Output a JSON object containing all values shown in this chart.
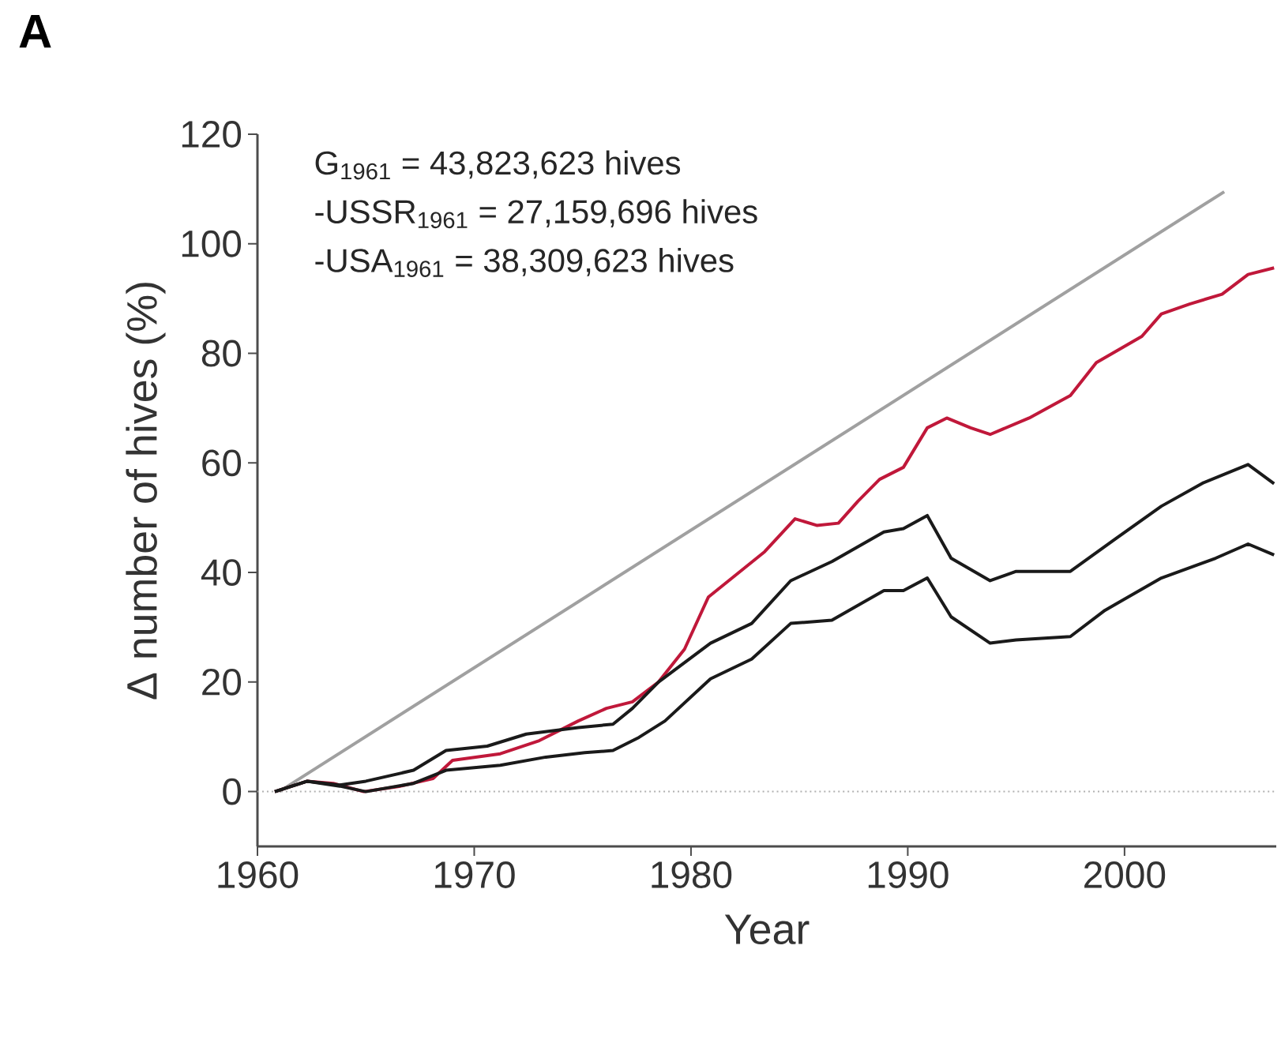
{
  "chart_data": {
    "type": "line",
    "title": "A",
    "xlabel": "Year",
    "ylabel": "Δ number of hives (%)",
    "annotations": [
      "G$_{1961}$ = 43,823,623 hives",
      "-USSR$_{1961}$ = 27,159,696 hives",
      "-USA$_{1961}$ = 38,309,623 hives"
    ],
    "xlim": [
      1960,
      2007
    ],
    "ylim": [
      -10,
      120
    ],
    "xticks": [
      1960,
      1970,
      1980,
      1990,
      2000
    ],
    "yticks": [
      0,
      20,
      40,
      60,
      80,
      100,
      120
    ],
    "marker": "none",
    "line_style": "solid",
    "ref_lines": [
      {
        "axis": "y",
        "value": 0,
        "color": "#b0b0b0",
        "line_style": "dotted"
      }
    ],
    "series": [
      {
        "color": "#a0a0a0",
        "x": [
          1961,
          2004.6
        ],
        "values": [
          0,
          109.5
        ]
      },
      {
        "color": "#c0183a",
        "x": [
          1960.8,
          1962.3,
          1963.5,
          1964.9,
          1966.6,
          1968.1,
          1969,
          1971.2,
          1973,
          1974.8,
          1976.1,
          1977.3,
          1978.5,
          1979.7,
          1980.8,
          1983.4,
          1984.8,
          1985.8,
          1986.8,
          1987.7,
          1988.7,
          1989.8,
          1990.9,
          1991.8,
          1992.9,
          1993.8,
          1995.6,
          1997.5,
          1998.7,
          2000.8,
          2001.7,
          2003,
          2004.5,
          2005.7,
          2006.9
        ],
        "values": [
          0,
          1.9,
          1.5,
          0,
          1,
          2.4,
          5.7,
          6.9,
          9.3,
          12.9,
          15.2,
          16.4,
          20,
          26,
          35.5,
          43.8,
          49.8,
          48.6,
          49,
          53,
          57,
          59.2,
          66.4,
          68.2,
          66.4,
          65.2,
          68.2,
          72.3,
          78.3,
          83.1,
          87.2,
          89,
          90.8,
          94.4,
          95.6
        ]
      },
      {
        "color": "#1a1a1a",
        "x": [
          1960.8,
          1962.3,
          1963.8,
          1965,
          1967.2,
          1968.7,
          1970.6,
          1972.4,
          1973.6,
          1974.8,
          1976.4,
          1977.3,
          1978.5,
          1980.9,
          1982.8,
          1984.6,
          1986.5,
          1988.9,
          1989.8,
          1990.9,
          1992,
          1993.8,
          1995,
          1997.5,
          1999.6,
          2001.7,
          2003.6,
          2005.7,
          2006.9
        ],
        "values": [
          0,
          1.9,
          1.2,
          1.9,
          3.9,
          7.5,
          8.3,
          10.5,
          11.1,
          11.7,
          12.3,
          15.2,
          20,
          27.1,
          30.7,
          38.5,
          42,
          47.4,
          48,
          50.4,
          42.6,
          38.5,
          40.2,
          40.2,
          46.2,
          52.1,
          56.3,
          59.7,
          56.2
        ]
      },
      {
        "color": "#1a1a1a",
        "x": [
          1960.8,
          1962.3,
          1963.8,
          1965,
          1967.2,
          1968.7,
          1971.2,
          1973.3,
          1975.1,
          1976.4,
          1977.6,
          1978.8,
          1980.9,
          1982.8,
          1984.6,
          1986.5,
          1988.9,
          1989.8,
          1990.9,
          1992,
          1993.8,
          1995,
          1997.5,
          1999.1,
          2001.7,
          2004.2,
          2005.7,
          2006.9
        ],
        "values": [
          0,
          1.9,
          1,
          0,
          1.5,
          3.9,
          4.8,
          6.3,
          7.1,
          7.5,
          9.9,
          12.9,
          20.6,
          24.2,
          30.7,
          31.3,
          36.7,
          36.7,
          39,
          31.9,
          27.1,
          27.7,
          28.3,
          33.1,
          39,
          42.6,
          45.2,
          43.2
        ]
      }
    ]
  }
}
